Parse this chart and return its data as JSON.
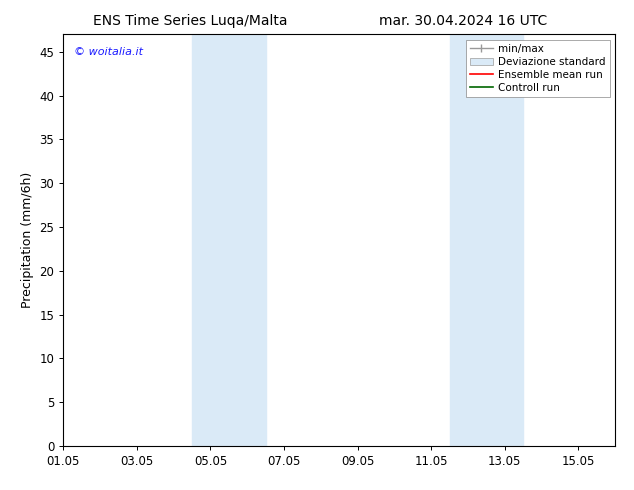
{
  "title_left": "ENS Time Series Luqa/Malta",
  "title_right": "mar. 30.04.2024 16 UTC",
  "ylabel": "Precipitation (mm/6h)",
  "xlim": [
    0,
    15
  ],
  "ylim": [
    0,
    47
  ],
  "yticks": [
    0,
    5,
    10,
    15,
    20,
    25,
    30,
    35,
    40,
    45
  ],
  "xtick_labels": [
    "01.05",
    "03.05",
    "05.05",
    "07.05",
    "09.05",
    "11.05",
    "13.05",
    "15.05"
  ],
  "xtick_positions": [
    0,
    2,
    4,
    6,
    8,
    10,
    12,
    14
  ],
  "shaded_regions": [
    {
      "xstart": 3.5,
      "xend": 5.5,
      "color": "#daeaf7"
    },
    {
      "xstart": 10.5,
      "xend": 12.5,
      "color": "#daeaf7"
    }
  ],
  "watermark_text": "© woitalia.it",
  "watermark_color": "#1a1aff",
  "background_color": "#ffffff",
  "legend_entries": [
    {
      "label": "min/max",
      "type": "minmax",
      "color": "#999999"
    },
    {
      "label": "Deviazione standard",
      "type": "patch",
      "color": "#daeaf7",
      "edgecolor": "#aaaaaa"
    },
    {
      "label": "Ensemble mean run",
      "type": "line",
      "color": "#ff0000",
      "linewidth": 1.2
    },
    {
      "label": "Controll run",
      "type": "line",
      "color": "#006600",
      "linewidth": 1.2
    }
  ],
  "title_fontsize": 10,
  "axis_label_fontsize": 9,
  "tick_fontsize": 8.5,
  "legend_fontsize": 7.5
}
